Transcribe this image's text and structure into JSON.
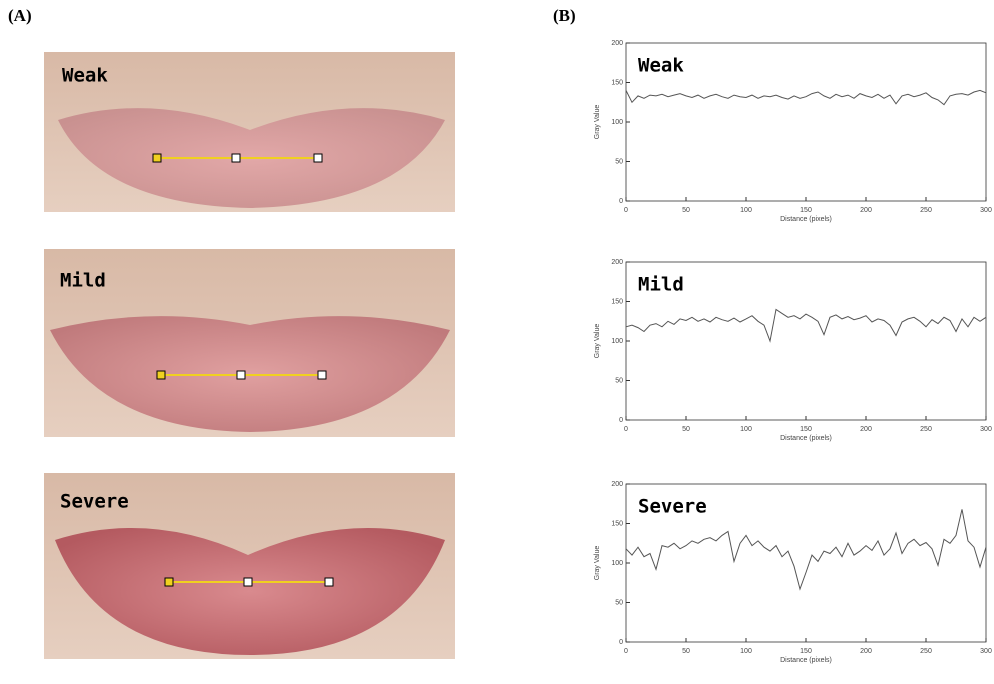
{
  "panels": {
    "left": "(A)",
    "right": "(B)"
  },
  "photos": [
    {
      "label": "Weak"
    },
    {
      "label": "Mild"
    },
    {
      "label": "Severe"
    }
  ],
  "chart_data": [
    {
      "type": "line",
      "title": "Weak",
      "x_label": "Distance (pixels)",
      "y_label": "Gray Value",
      "xlim": [
        0,
        300
      ],
      "xticks": [
        0,
        50,
        100,
        150,
        200,
        250,
        300
      ],
      "ylim": [
        0,
        200
      ],
      "yticks": [
        0,
        50,
        100,
        150,
        200
      ],
      "x": [
        0,
        5,
        10,
        15,
        20,
        25,
        30,
        35,
        40,
        45,
        50,
        55,
        60,
        65,
        70,
        75,
        80,
        85,
        90,
        95,
        100,
        105,
        110,
        115,
        120,
        125,
        130,
        135,
        140,
        145,
        150,
        155,
        160,
        165,
        170,
        175,
        180,
        185,
        190,
        195,
        200,
        205,
        210,
        215,
        220,
        225,
        230,
        235,
        240,
        245,
        250,
        255,
        260,
        265,
        270,
        275,
        280,
        285,
        290,
        295,
        300
      ],
      "series": [
        {
          "color": "#555555",
          "values": [
            140,
            125,
            133,
            130,
            134,
            133,
            135,
            132,
            134,
            136,
            133,
            131,
            134,
            130,
            133,
            135,
            132,
            130,
            134,
            132,
            131,
            134,
            130,
            133,
            132,
            134,
            131,
            129,
            133,
            130,
            132,
            136,
            138,
            133,
            130,
            135,
            132,
            134,
            130,
            136,
            133,
            131,
            135,
            130,
            134,
            123,
            133,
            135,
            132,
            134,
            137,
            131,
            128,
            122,
            133,
            135,
            136,
            134,
            138,
            140,
            137
          ]
        }
      ]
    },
    {
      "type": "line",
      "title": "Mild",
      "x_label": "Distance (pixels)",
      "y_label": "Gray Value",
      "xlim": [
        0,
        300
      ],
      "xticks": [
        0,
        50,
        100,
        150,
        200,
        250,
        300
      ],
      "ylim": [
        0,
        200
      ],
      "yticks": [
        0,
        50,
        100,
        150,
        200
      ],
      "x": [
        0,
        5,
        10,
        15,
        20,
        25,
        30,
        35,
        40,
        45,
        50,
        55,
        60,
        65,
        70,
        75,
        80,
        85,
        90,
        95,
        100,
        105,
        110,
        115,
        120,
        125,
        130,
        135,
        140,
        145,
        150,
        155,
        160,
        165,
        170,
        175,
        180,
        185,
        190,
        195,
        200,
        205,
        210,
        215,
        220,
        225,
        230,
        235,
        240,
        245,
        250,
        255,
        260,
        265,
        270,
        275,
        280,
        285,
        290,
        295,
        300
      ],
      "series": [
        {
          "color": "#555555",
          "values": [
            118,
            120,
            117,
            112,
            120,
            122,
            118,
            125,
            121,
            128,
            126,
            130,
            125,
            128,
            124,
            130,
            127,
            125,
            129,
            124,
            128,
            132,
            125,
            120,
            100,
            140,
            135,
            130,
            132,
            128,
            134,
            130,
            125,
            108,
            130,
            133,
            128,
            131,
            127,
            129,
            132,
            124,
            128,
            126,
            120,
            107,
            124,
            128,
            130,
            125,
            118,
            127,
            122,
            130,
            126,
            112,
            128,
            118,
            130,
            125,
            130
          ]
        }
      ]
    },
    {
      "type": "line",
      "title": "Severe",
      "x_label": "Distance (pixels)",
      "y_label": "Gray Value",
      "xlim": [
        0,
        300
      ],
      "xticks": [
        0,
        50,
        100,
        150,
        200,
        250,
        300
      ],
      "ylim": [
        0,
        200
      ],
      "yticks": [
        0,
        50,
        100,
        150,
        200
      ],
      "x": [
        0,
        5,
        10,
        15,
        20,
        25,
        30,
        35,
        40,
        45,
        50,
        55,
        60,
        65,
        70,
        75,
        80,
        85,
        90,
        95,
        100,
        105,
        110,
        115,
        120,
        125,
        130,
        135,
        140,
        145,
        150,
        155,
        160,
        165,
        170,
        175,
        180,
        185,
        190,
        195,
        200,
        205,
        210,
        215,
        220,
        225,
        230,
        235,
        240,
        245,
        250,
        255,
        260,
        265,
        270,
        275,
        280,
        285,
        290,
        295,
        300
      ],
      "series": [
        {
          "color": "#555555",
          "values": [
            118,
            110,
            120,
            108,
            112,
            92,
            122,
            120,
            125,
            118,
            122,
            128,
            125,
            130,
            132,
            128,
            135,
            140,
            102,
            125,
            135,
            122,
            128,
            120,
            115,
            122,
            108,
            115,
            96,
            67,
            88,
            110,
            102,
            115,
            112,
            120,
            108,
            125,
            110,
            115,
            122,
            116,
            128,
            110,
            118,
            138,
            112,
            125,
            130,
            122,
            126,
            118,
            97,
            130,
            125,
            135,
            168,
            128,
            120,
            95,
            120
          ]
        }
      ]
    }
  ]
}
